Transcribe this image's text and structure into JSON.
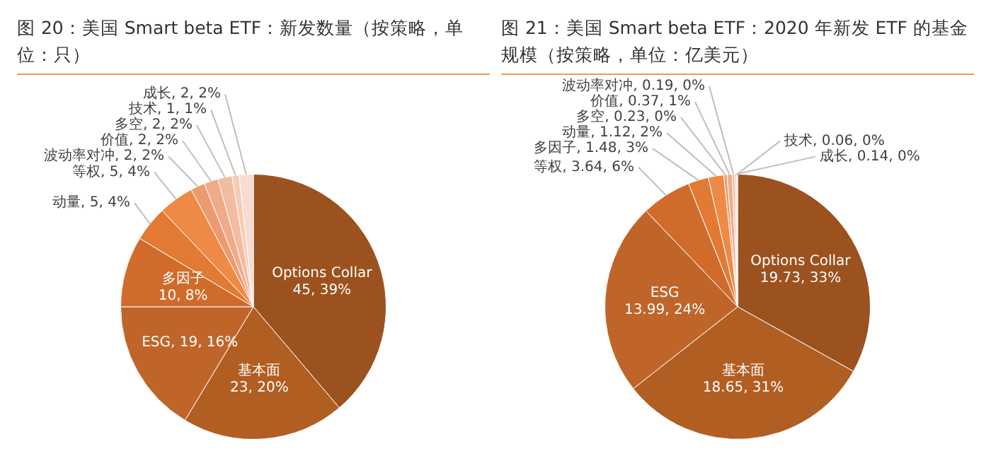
{
  "chart_data": [
    {
      "type": "pie",
      "title": "图 20：美国 Smart beta ETF：新发数量（按策略，单位：只）",
      "legend": false,
      "categories": [
        "Options Collar",
        "基本面",
        "ESG",
        "多因子",
        "动量",
        "等权",
        "波动率对冲",
        "价值",
        "多空",
        "技术",
        "成长"
      ],
      "values": [
        45,
        23,
        19,
        10,
        5,
        5,
        2,
        2,
        2,
        1,
        2
      ],
      "value_labels": [
        "45, 39%",
        "23, 20%",
        "19, 16%",
        "10, 8%",
        "5, 4%",
        "5, 4%",
        "2, 2%",
        "2, 2%",
        "2, 2%",
        "1, 1%",
        "2, 2%"
      ],
      "colors": [
        "#9c521f",
        "#b15e22",
        "#c0652a",
        "#d06b2b",
        "#e27a34",
        "#ee8a45",
        "#ec9a6f",
        "#f0ab88",
        "#f3bba0",
        "#f6cbb8",
        "#f8dcd0"
      ]
    },
    {
      "type": "pie",
      "title": "图 21：美国 Smart beta ETF：2020 年新发 ETF 的基金规模（按策略，单位：亿美元）",
      "legend": false,
      "categories": [
        "Options Collar",
        "基本面",
        "ESG",
        "等权",
        "多因子",
        "动量",
        "多空",
        "价值",
        "波动率对冲",
        "成长",
        "技术"
      ],
      "values": [
        19.73,
        18.65,
        13.99,
        3.64,
        1.48,
        1.12,
        0.23,
        0.37,
        0.19,
        0.14,
        0.06
      ],
      "value_labels": [
        "19.73, 33%",
        "18.65, 31%",
        "13.99, 24%",
        "3.64, 6%",
        "1.48, 3%",
        "1.12, 2%",
        "0.23, 0%",
        "0.37, 1%",
        "0.19, 0%",
        "0.14, 0%",
        "0.06, 0%"
      ],
      "colors": [
        "#9c521f",
        "#b15e22",
        "#c0652a",
        "#d06b2b",
        "#e27a34",
        "#ee8a45",
        "#ec9a6f",
        "#f0ab88",
        "#f3bba0",
        "#f6cbb8",
        "#f8dcd0"
      ]
    }
  ]
}
